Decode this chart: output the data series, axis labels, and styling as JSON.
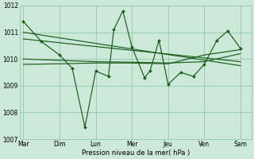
{
  "background_color": "#cce8d8",
  "grid_color": "#99ccb0",
  "line_color": "#1a5c1a",
  "xlabel": "Pression niveau de la mer( hPa )",
  "ylim": [
    1007,
    1012
  ],
  "yticks": [
    1007,
    1008,
    1009,
    1010,
    1011,
    1012
  ],
  "xtick_labels": [
    "Mar",
    "Dim",
    "Lun",
    "Mer",
    "Jeu",
    "Ven",
    "Sam"
  ],
  "xtick_pos": [
    0,
    1,
    2,
    3,
    4,
    5,
    6
  ],
  "series_volatile": {
    "x": [
      0,
      0.5,
      1.0,
      1.35,
      1.7,
      2.0,
      2.35,
      2.5,
      2.75,
      3.0,
      3.35,
      3.5,
      3.75,
      4.0,
      4.35,
      4.7,
      5.0,
      5.35,
      5.65,
      6.0
    ],
    "y": [
      1011.4,
      1010.65,
      1010.15,
      1009.65,
      1007.45,
      1009.55,
      1009.35,
      1011.1,
      1011.8,
      1010.45,
      1009.3,
      1009.55,
      1010.7,
      1009.05,
      1009.5,
      1009.35,
      1009.8,
      1010.7,
      1011.05,
      1010.4
    ]
  },
  "series_linear1": {
    "x": [
      0,
      6
    ],
    "y": [
      1011.0,
      1009.75
    ]
  },
  "series_linear2": {
    "x": [
      0,
      6
    ],
    "y": [
      1010.75,
      1009.9
    ]
  },
  "series_smooth1": {
    "x": [
      0,
      1,
      2,
      3,
      4,
      5,
      6
    ],
    "y": [
      1010.0,
      1009.95,
      1009.9,
      1009.88,
      1009.85,
      1009.9,
      1010.2
    ]
  },
  "series_smooth2": {
    "x": [
      0,
      1,
      2,
      3,
      4,
      5,
      6
    ],
    "y": [
      1009.8,
      1009.82,
      1009.85,
      1009.85,
      1009.82,
      1010.15,
      1010.35
    ]
  }
}
